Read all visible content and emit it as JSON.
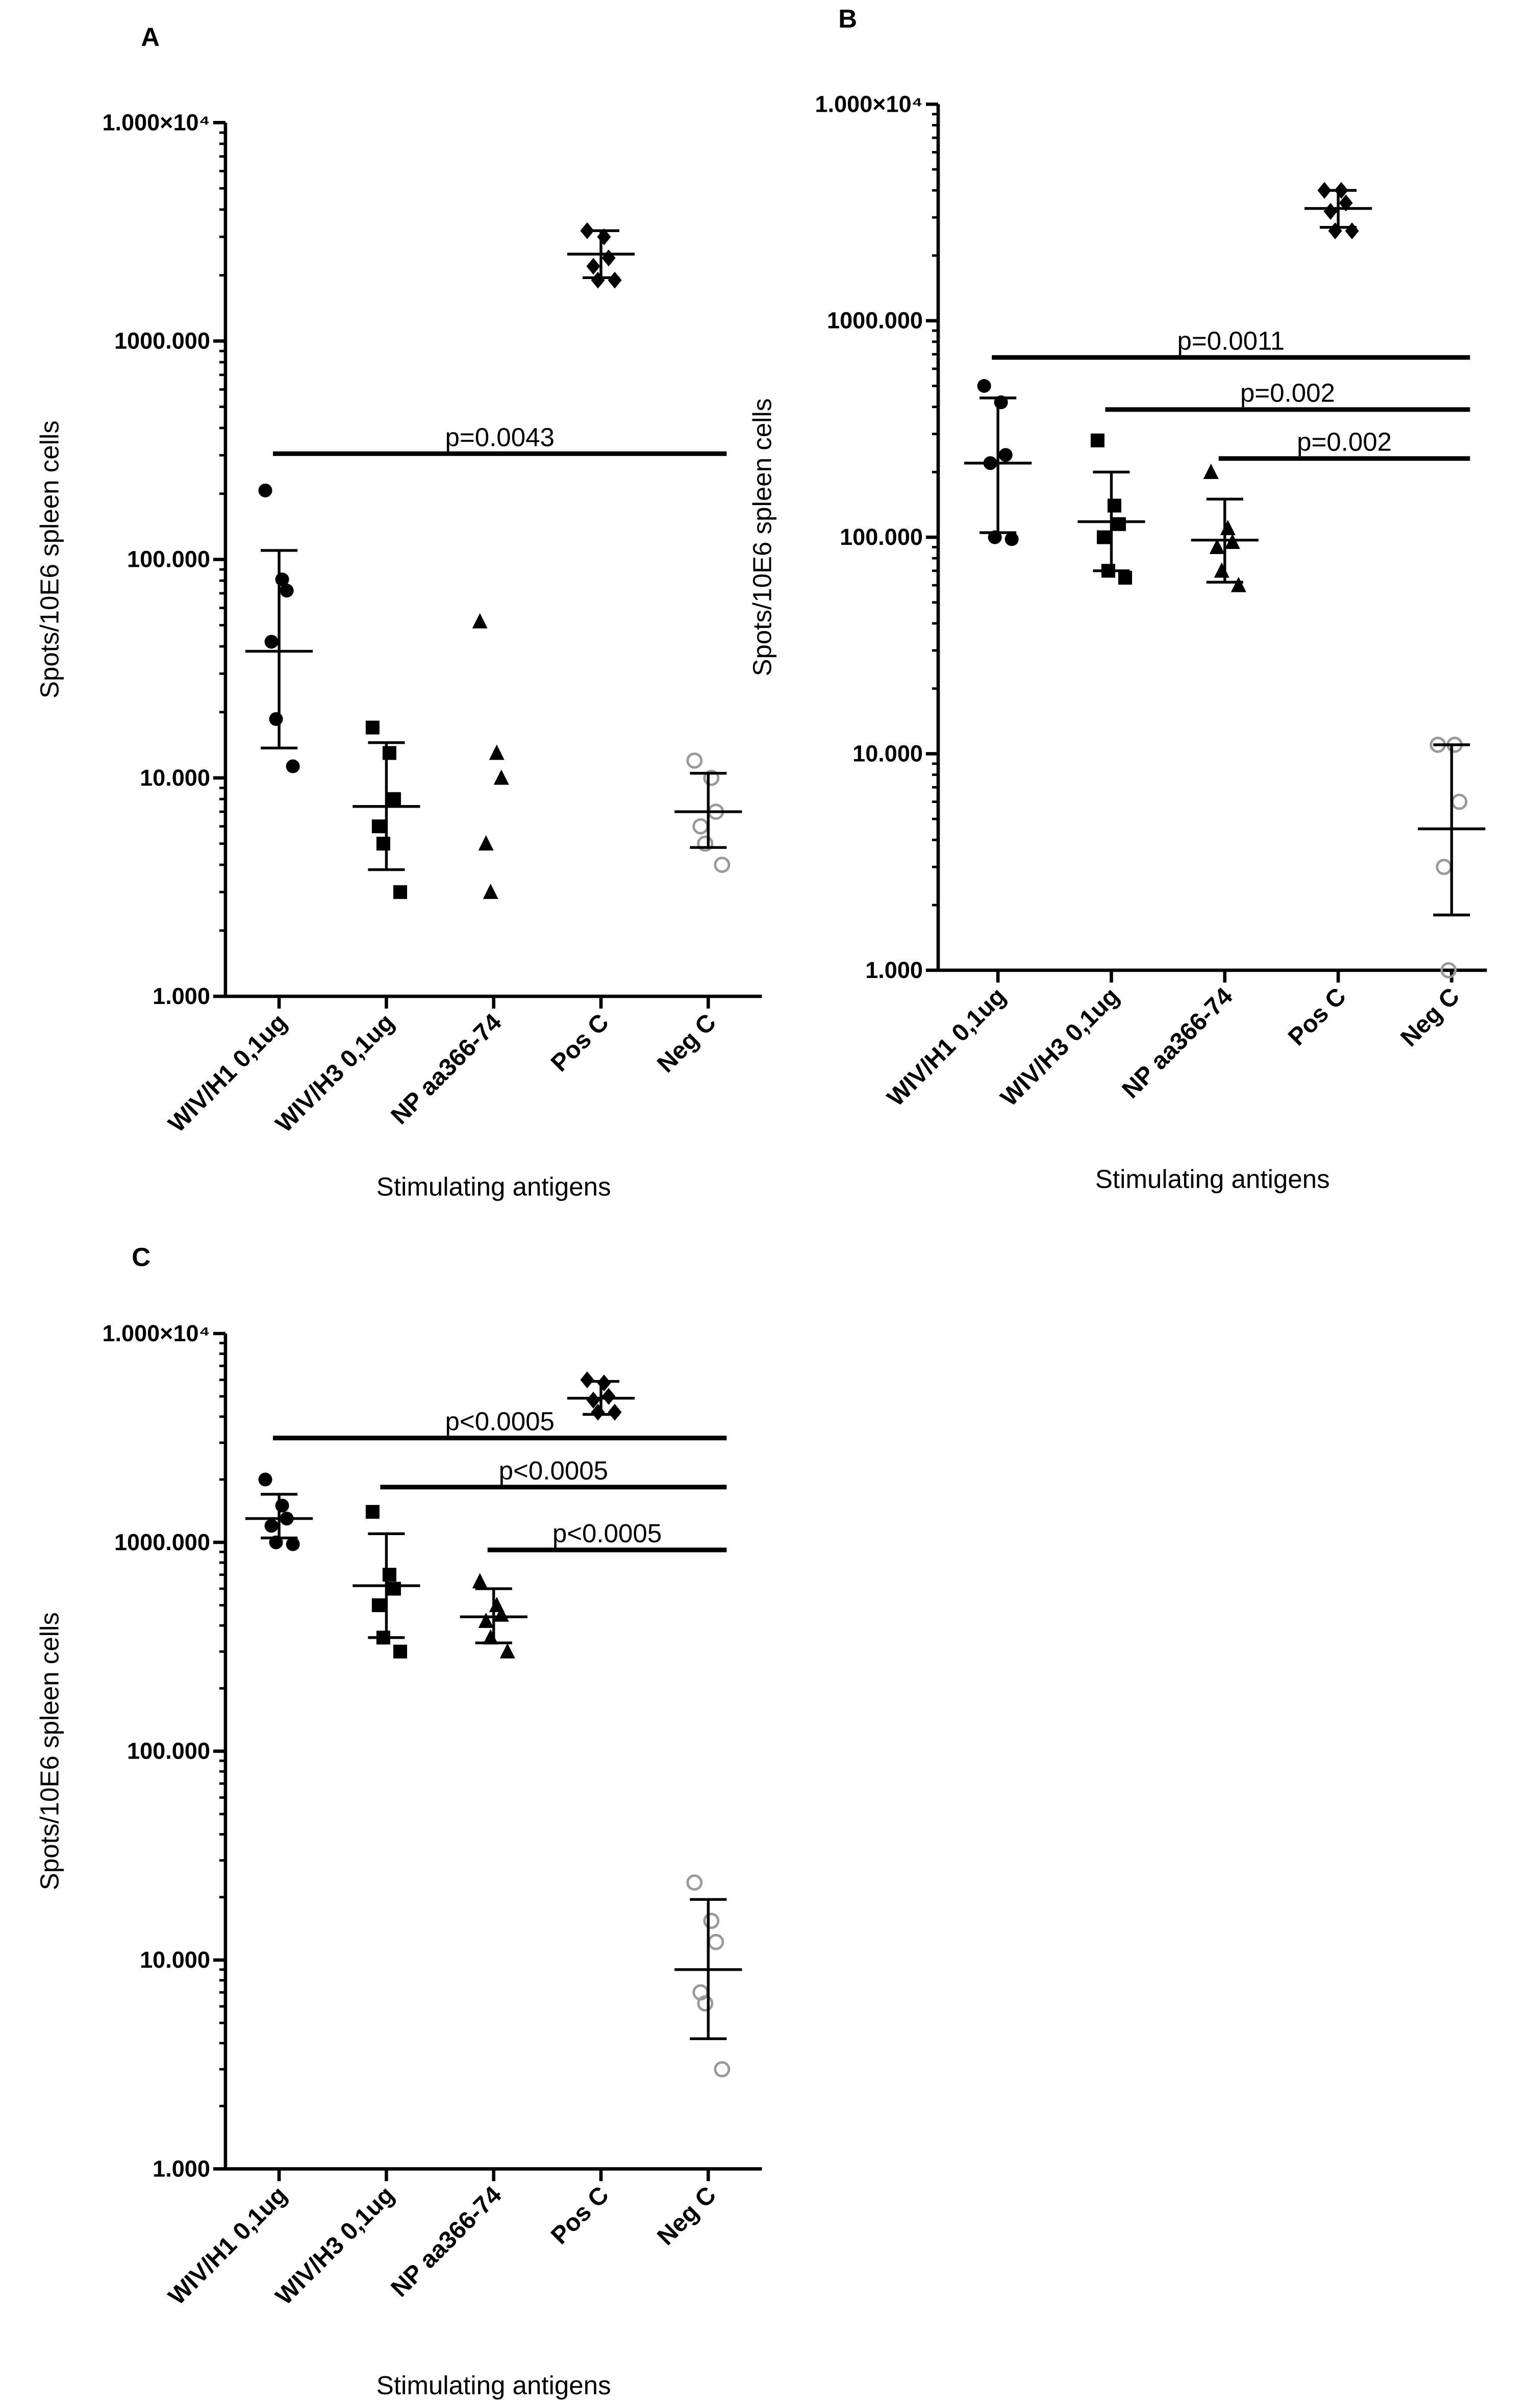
{
  "chart_data": [
    {
      "type": "scatter",
      "panel": "A",
      "ylabel": "Spots/10E6 spleen cells",
      "xlabel": "Stimulating antigens",
      "categories": [
        "WIV/H1 0,1ug",
        "WIV/H3 0,1ug",
        "NP aa366-74",
        "Pos C",
        "Neg C"
      ],
      "points": [
        [
          207,
          81,
          72,
          42,
          18.6,
          11.3
        ],
        [
          17,
          13,
          8,
          6,
          5,
          3
        ],
        [
          52,
          13,
          10,
          5,
          3
        ],
        [
          3200,
          3000,
          2400,
          2200,
          1900,
          1900
        ],
        [
          12,
          10,
          7,
          6,
          5,
          4
        ]
      ],
      "center": [
        38,
        7.4,
        null,
        2500,
        7
      ],
      "err_high": [
        110,
        14.5,
        null,
        3200,
        10.5
      ],
      "err_low": [
        13.7,
        3.8,
        null,
        1950,
        4.8
      ],
      "log_y": true,
      "minor_ticks": true,
      "ylim": [
        1,
        10000
      ],
      "yticks": [
        {
          "value": 1,
          "label": "1.000"
        },
        {
          "value": 10,
          "label": "10.000"
        },
        {
          "value": 100,
          "label": "100.000"
        },
        {
          "value": 1000,
          "label": "1000.000"
        },
        {
          "value": 10000,
          "label": "1.000×10⁴"
        }
      ],
      "markers": [
        "circle",
        "square",
        "triangle",
        "diamond",
        "open-circle"
      ],
      "colors": [
        "#000000",
        "#000000",
        "#000000",
        "#000000",
        "#999999"
      ],
      "annotations": [
        {
          "text": "p=0.0043",
          "y": 305,
          "from": 0,
          "to": 4
        }
      ]
    },
    {
      "type": "scatter",
      "panel": "B",
      "ylabel": "Spots/10E6 spleen cells",
      "xlabel": "Stimulating antigens",
      "categories": [
        "WIV/H1 0,1ug",
        "WIV/H3 0,1ug",
        "NP aa366-74",
        "Pos C",
        "Neg C"
      ],
      "points": [
        [
          500,
          420,
          240,
          220,
          100,
          98
        ],
        [
          280,
          140,
          115,
          100,
          70,
          65
        ],
        [
          200,
          110,
          95,
          90,
          70,
          60
        ],
        [
          4000,
          4000,
          3500,
          3200,
          2600,
          2600
        ],
        [
          11,
          11,
          6,
          3,
          1
        ]
      ],
      "center": [
        220,
        118,
        97,
        3300,
        4.5
      ],
      "err_high": [
        440,
        200,
        150,
        4000,
        11
      ],
      "err_low": [
        105,
        70,
        62,
        2700,
        1.8
      ],
      "log_y": true,
      "minor_ticks": true,
      "ylim": [
        1,
        10000
      ],
      "yticks": [
        {
          "value": 1,
          "label": "1.000"
        },
        {
          "value": 10,
          "label": "10.000"
        },
        {
          "value": 100,
          "label": "100.000"
        },
        {
          "value": 1000,
          "label": "1000.000"
        },
        {
          "value": 10000,
          "label": "1.000×10⁴"
        }
      ],
      "markers": [
        "circle",
        "square",
        "triangle",
        "diamond",
        "open-circle"
      ],
      "colors": [
        "#000000",
        "#000000",
        "#000000",
        "#000000",
        "#999999"
      ],
      "annotations": [
        {
          "text": "p=0.0011",
          "y": 677,
          "from": 0,
          "to": 4
        },
        {
          "text": "p=0.002",
          "y": 389,
          "from": 1,
          "to": 4
        },
        {
          "text": "p=0.002",
          "y": 231,
          "from": 2,
          "to": 4
        }
      ]
    },
    {
      "type": "scatter",
      "panel": "C",
      "ylabel": "Spots/10E6 spleen cells",
      "xlabel": "Stimulating antigens",
      "categories": [
        "WIV/H1 0,1ug",
        "WIV/H3 0,1ug",
        "NP aa366-74",
        "Pos C",
        "Neg C"
      ],
      "points": [
        [
          2000,
          1500,
          1300,
          1200,
          1000,
          980
        ],
        [
          1400,
          700,
          600,
          500,
          350,
          300
        ],
        [
          650,
          500,
          450,
          420,
          350,
          300
        ],
        [
          6000,
          5800,
          5000,
          4800,
          4200,
          4200
        ],
        [
          23.5,
          15.4,
          12.2,
          7,
          6.2,
          3
        ]
      ],
      "center": [
        1300,
        620,
        440,
        4900,
        9
      ],
      "err_high": [
        1700,
        1100,
        600,
        5900,
        19.5
      ],
      "err_low": [
        1050,
        350,
        330,
        4100,
        4.2
      ],
      "log_y": true,
      "minor_ticks": true,
      "ylim": [
        1,
        10000
      ],
      "yticks": [
        {
          "value": 1,
          "label": "1.000"
        },
        {
          "value": 10,
          "label": "10.000"
        },
        {
          "value": 100,
          "label": "100.000"
        },
        {
          "value": 1000,
          "label": "1000.000"
        },
        {
          "value": 10000,
          "label": "1.000×10⁴"
        }
      ],
      "markers": [
        "circle",
        "square",
        "triangle",
        "diamond",
        "open-circle"
      ],
      "colors": [
        "#000000",
        "#000000",
        "#000000",
        "#000000",
        "#999999"
      ],
      "annotations": [
        {
          "text": "p<0.0005",
          "y": 3160,
          "from": 0,
          "to": 4
        },
        {
          "text": "p<0.0005",
          "y": 1840,
          "from": 1,
          "to": 4
        },
        {
          "text": "p<0.0005",
          "y": 920,
          "from": 2,
          "to": 4
        }
      ]
    }
  ]
}
